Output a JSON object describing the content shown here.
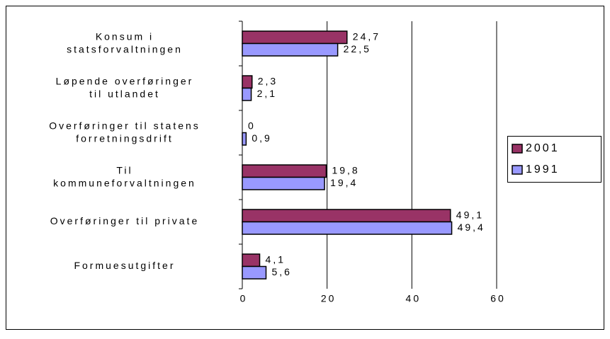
{
  "chart_data": {
    "type": "hbar",
    "categories": [
      "Konsum i\nstatsforvaltningen",
      "Løpende overføringer\ntil utlandet",
      "Overføringer til statens\nforretningsdrift",
      "Til\nkommuneforvaltningen",
      "Overføringer til private",
      "Formuesutgifter"
    ],
    "series": [
      {
        "name": "2001",
        "color": "#993366",
        "values": [
          24.7,
          2.3,
          0,
          19.8,
          49.1,
          4.1
        ],
        "value_labels": [
          "24,7",
          "2,3",
          "0",
          "19,8",
          "49,1",
          "4,1"
        ]
      },
      {
        "name": "1991",
        "color": "#9999ff",
        "values": [
          22.5,
          2.1,
          0.9,
          19.4,
          49.4,
          5.6
        ],
        "value_labels": [
          "22,5",
          "2,1",
          "0,9",
          "19,4",
          "49,4",
          "5,6"
        ]
      }
    ],
    "xlim": [
      0,
      60
    ],
    "xticks": [
      0,
      20,
      40,
      60
    ],
    "grid": true,
    "legend": "right"
  }
}
